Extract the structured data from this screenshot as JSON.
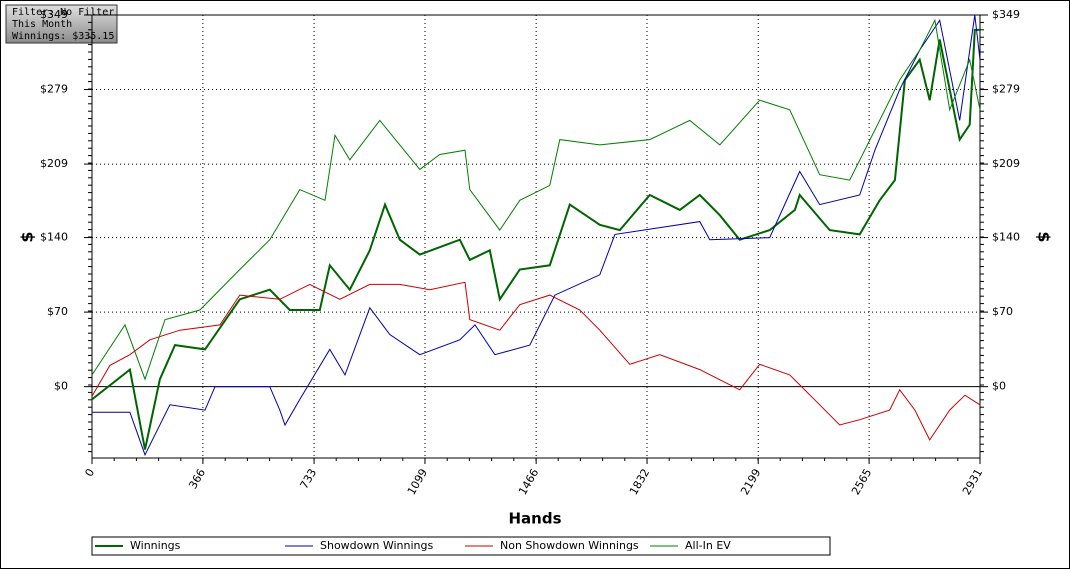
{
  "info": [
    "Filter: No Filter",
    "This Month",
    "Winnings: $335.15"
  ],
  "chart_data": {
    "type": "line",
    "xlabel": "Hands",
    "ylabel": "$",
    "y2label": "$",
    "xlim": [
      0,
      2931
    ],
    "xticks": [
      0,
      366,
      733,
      1099,
      1466,
      1832,
      2199,
      2565,
      2931
    ],
    "ylim": [
      -67,
      349
    ],
    "yticks": [
      {
        "value": 0,
        "label": "$0"
      },
      {
        "value": 70,
        "label": "$70"
      },
      {
        "value": 140,
        "label": "$140"
      },
      {
        "value": 209,
        "label": "$209"
      },
      {
        "value": 279,
        "label": "$279"
      },
      {
        "value": 349,
        "label": "$349"
      }
    ],
    "y2lim": [
      -67,
      349
    ],
    "y2ticks": [
      {
        "value": 0,
        "label": "$0"
      },
      {
        "value": 70,
        "label": "$70"
      },
      {
        "value": 140,
        "label": "$140"
      },
      {
        "value": 209,
        "label": "$209"
      },
      {
        "value": 279,
        "label": "$279"
      },
      {
        "value": 349,
        "label": "$349"
      }
    ],
    "grid": true,
    "legend": "bottom",
    "series": [
      {
        "name": "Winnings",
        "color": "#006400",
        "x": [
          0,
          125,
          175,
          224,
          274,
          373,
          488,
          587,
          653,
          752,
          785,
          851,
          917,
          967,
          1016,
          1082,
          1214,
          1247,
          1313,
          1346,
          1412,
          1511,
          1577,
          1676,
          1742,
          1841,
          1940,
          2006,
          2072,
          2138,
          2237,
          2320,
          2336,
          2435,
          2534,
          2600,
          2650,
          2683,
          2732,
          2765,
          2798,
          2864,
          2897,
          2914,
          2931
        ],
        "values": [
          -12,
          16,
          -59,
          7,
          39,
          35,
          82,
          91,
          72,
          72,
          114,
          91,
          128,
          171,
          138,
          124,
          138,
          119,
          128,
          82,
          110,
          114,
          171,
          152,
          147,
          180,
          166,
          180,
          161,
          138,
          147,
          166,
          180,
          147,
          143,
          175,
          194,
          288,
          307,
          269,
          326,
          232,
          246,
          335,
          335
        ]
      },
      {
        "name": "Showdown Winnings",
        "color": "#0000aa",
        "x": [
          0,
          125,
          175,
          257,
          373,
          406,
          587,
          620,
          637,
          686,
          785,
          835,
          917,
          983,
          1082,
          1214,
          1264,
          1330,
          1445,
          1528,
          1676,
          1726,
          2006,
          2039,
          2237,
          2336,
          2402,
          2534,
          2584,
          2666,
          2732,
          2798,
          2864,
          2914,
          2931
        ],
        "values": [
          -24,
          -24,
          -64,
          -17,
          -22,
          0,
          0,
          -22,
          -36,
          -12,
          35,
          11,
          74,
          49,
          30,
          44,
          58,
          30,
          39,
          86,
          105,
          143,
          155,
          138,
          140,
          202,
          171,
          180,
          222,
          279,
          316,
          344,
          250,
          349,
          307
        ]
      },
      {
        "name": "Non Showdown Winnings",
        "color": "#cc0000",
        "x": [
          0,
          59,
          125,
          191,
          290,
          422,
          488,
          620,
          719,
          818,
          917,
          1016,
          1115,
          1231,
          1247,
          1346,
          1412,
          1511,
          1610,
          1676,
          1775,
          1874,
          2006,
          2138,
          2204,
          2303,
          2402,
          2468,
          2534,
          2633,
          2666,
          2716,
          2765,
          2831,
          2881,
          2931
        ],
        "values": [
          -9,
          20,
          30,
          44,
          53,
          58,
          86,
          82,
          96,
          82,
          96,
          96,
          91,
          98,
          63,
          53,
          77,
          86,
          72,
          53,
          21,
          30,
          16,
          -3,
          21,
          11,
          -17,
          -36,
          -31,
          -22,
          -3,
          -22,
          -50,
          -22,
          -8,
          -17
        ]
      },
      {
        "name": "All-In EV",
        "color": "#008000",
        "x": [
          0,
          109,
          175,
          241,
          356,
          488,
          587,
          686,
          769,
          802,
          851,
          950,
          1016,
          1082,
          1148,
          1231,
          1247,
          1346,
          1412,
          1511,
          1544,
          1676,
          1841,
          1973,
          2072,
          2204,
          2303,
          2402,
          2501,
          2584,
          2666,
          2732,
          2782,
          2831,
          2897,
          2931
        ],
        "values": [
          11,
          58,
          7,
          63,
          72,
          110,
          138,
          185,
          175,
          236,
          213,
          250,
          227,
          204,
          218,
          222,
          185,
          147,
          175,
          189,
          232,
          227,
          232,
          250,
          227,
          269,
          260,
          199,
          194,
          241,
          288,
          316,
          344,
          260,
          307,
          260
        ]
      }
    ]
  }
}
